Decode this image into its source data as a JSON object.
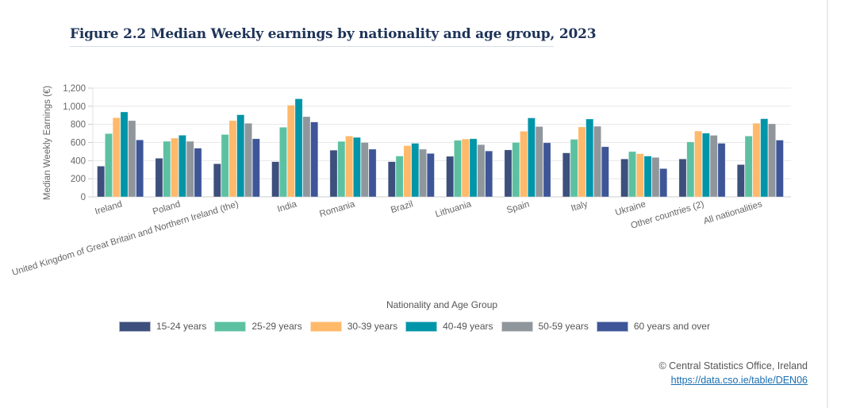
{
  "title": "Figure 2.2 Median Weekly earnings by nationality and age group, 2023",
  "credit": {
    "text": "© Central Statistics Office, Ireland",
    "link": "https://data.cso.ie/table/DEN06"
  },
  "chart_data": {
    "type": "bar",
    "title": "Figure 2.2 Median Weekly earnings by nationality and age group, 2023",
    "xlabel": "Nationality and Age Group",
    "ylabel": "Median Weekly Earnings (€)",
    "ylim": [
      0,
      1200
    ],
    "yticks": [
      0,
      200,
      400,
      600,
      800,
      1000,
      1200
    ],
    "ytick_labels": [
      "0",
      "200",
      "400",
      "600",
      "800",
      "1,000",
      "1,200"
    ],
    "grid": true,
    "legend_position": "bottom",
    "categories": [
      "Ireland",
      "Poland",
      "United Kingdom of Great Britain and Northern Ireland (the)",
      "India",
      "Romania",
      "Brazil",
      "Lithuania",
      "Spain",
      "Italy",
      "Ukraine",
      "Other countries (2)",
      "All nationalities"
    ],
    "series": [
      {
        "name": "15-24 years",
        "color": "#3d4f7c",
        "values": [
          339,
          426,
          365,
          388,
          515,
          388,
          447,
          518,
          485,
          418,
          418,
          356
        ]
      },
      {
        "name": "25-29 years",
        "color": "#5cc1a1",
        "values": [
          698,
          613,
          688,
          768,
          612,
          450,
          624,
          600,
          635,
          500,
          606,
          671
        ]
      },
      {
        "name": "30-39 years",
        "color": "#ffb96a",
        "values": [
          873,
          648,
          841,
          1012,
          671,
          565,
          638,
          724,
          771,
          476,
          726,
          812
        ]
      },
      {
        "name": "40-49 years",
        "color": "#0095a8",
        "values": [
          937,
          680,
          906,
          1082,
          656,
          591,
          641,
          871,
          859,
          450,
          703,
          862
        ]
      },
      {
        "name": "50-59 years",
        "color": "#8f969c",
        "values": [
          841,
          613,
          812,
          885,
          600,
          526,
          576,
          776,
          779,
          435,
          679,
          806
        ]
      },
      {
        "name": "60 years and over",
        "color": "#3e5698",
        "values": [
          628,
          537,
          641,
          826,
          526,
          479,
          506,
          597,
          553,
          312,
          591,
          626
        ]
      }
    ]
  }
}
